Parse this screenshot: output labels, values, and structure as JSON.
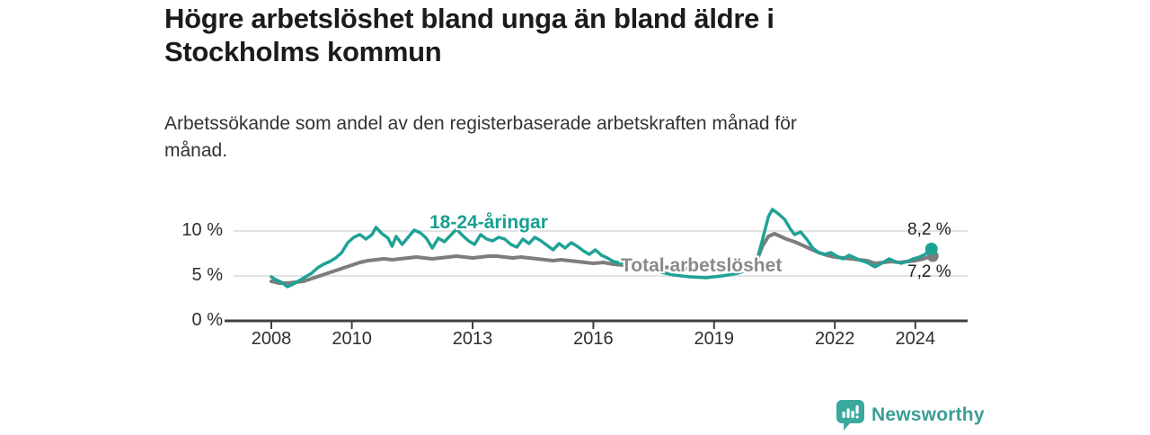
{
  "header": {
    "title_line1": "Högre arbetslöshet bland unga än bland äldre i",
    "title_line2": "Stockholms kommun",
    "subtitle_line1": "Arbetssökande som andel av den registerbaserade arbetskraften månad för",
    "subtitle_line2": "månad."
  },
  "chart_data": {
    "type": "line",
    "title": "Högre arbetslöshet bland unga än bland äldre i Stockholms kommun",
    "subtitle": "Arbetssökande som andel av den registerbaserade arbetskraften månad för månad.",
    "unit": "%",
    "grid": "horizontal-only",
    "legend_position": "inline-labels",
    "x_range": [
      2007.0,
      2025.3
    ],
    "y_range": [
      0,
      13
    ],
    "x_ticks": [
      {
        "value": 2008,
        "label": "2008"
      },
      {
        "value": 2010,
        "label": "2010"
      },
      {
        "value": 2013,
        "label": "2013"
      },
      {
        "value": 2016,
        "label": "2016"
      },
      {
        "value": 2019,
        "label": "2019"
      },
      {
        "value": 2022,
        "label": "2022"
      },
      {
        "value": 2024,
        "label": "2024"
      }
    ],
    "y_ticks": [
      {
        "value": 0,
        "label": "0 %"
      },
      {
        "value": 5,
        "label": "5 %"
      },
      {
        "value": 10,
        "label": "10 %"
      }
    ],
    "series": [
      {
        "name": "Total arbetslöshet",
        "color": "#7d7d7d",
        "end_label": "7,2 %",
        "end_value": 7.2,
        "points": [
          [
            2008.0,
            4.4
          ],
          [
            2008.2,
            4.2
          ],
          [
            2008.4,
            4.2
          ],
          [
            2008.6,
            4.3
          ],
          [
            2008.8,
            4.4
          ],
          [
            2009.0,
            4.7
          ],
          [
            2009.2,
            5.0
          ],
          [
            2009.4,
            5.3
          ],
          [
            2009.6,
            5.6
          ],
          [
            2009.8,
            5.9
          ],
          [
            2010.0,
            6.2
          ],
          [
            2010.2,
            6.5
          ],
          [
            2010.4,
            6.7
          ],
          [
            2010.6,
            6.8
          ],
          [
            2010.8,
            6.9
          ],
          [
            2011.0,
            6.8
          ],
          [
            2011.2,
            6.9
          ],
          [
            2011.4,
            7.0
          ],
          [
            2011.6,
            7.1
          ],
          [
            2011.8,
            7.0
          ],
          [
            2012.0,
            6.9
          ],
          [
            2012.2,
            7.0
          ],
          [
            2012.4,
            7.1
          ],
          [
            2012.6,
            7.2
          ],
          [
            2012.8,
            7.1
          ],
          [
            2013.0,
            7.0
          ],
          [
            2013.2,
            7.1
          ],
          [
            2013.4,
            7.2
          ],
          [
            2013.6,
            7.2
          ],
          [
            2013.8,
            7.1
          ],
          [
            2014.0,
            7.0
          ],
          [
            2014.2,
            7.1
          ],
          [
            2014.4,
            7.0
          ],
          [
            2014.6,
            6.9
          ],
          [
            2014.8,
            6.8
          ],
          [
            2015.0,
            6.7
          ],
          [
            2015.2,
            6.8
          ],
          [
            2015.4,
            6.7
          ],
          [
            2015.6,
            6.6
          ],
          [
            2015.8,
            6.5
          ],
          [
            2016.0,
            6.4
          ],
          [
            2016.25,
            6.5
          ],
          [
            2016.5,
            6.3
          ],
          [
            2016.75,
            6.2
          ],
          [
            2017.0,
            6.3
          ],
          [
            2017.3,
            6.1
          ],
          [
            2017.6,
            6.0
          ],
          [
            2018.0,
            5.9
          ],
          [
            2018.5,
            5.8
          ],
          [
            2019.0,
            5.8
          ],
          [
            2019.5,
            5.9
          ],
          [
            2019.9,
            6.2
          ],
          [
            2020.05,
            6.6
          ],
          [
            2020.2,
            8.3
          ],
          [
            2020.35,
            9.4
          ],
          [
            2020.5,
            9.7
          ],
          [
            2020.65,
            9.4
          ],
          [
            2020.8,
            9.1
          ],
          [
            2021.0,
            8.8
          ],
          [
            2021.2,
            8.4
          ],
          [
            2021.4,
            8.0
          ],
          [
            2021.6,
            7.6
          ],
          [
            2021.8,
            7.3
          ],
          [
            2022.0,
            7.1
          ],
          [
            2022.2,
            7.0
          ],
          [
            2022.4,
            6.9
          ],
          [
            2022.6,
            6.8
          ],
          [
            2022.8,
            6.7
          ],
          [
            2023.0,
            6.4
          ],
          [
            2023.2,
            6.5
          ],
          [
            2023.4,
            6.6
          ],
          [
            2023.6,
            6.5
          ],
          [
            2023.8,
            6.6
          ],
          [
            2024.0,
            6.7
          ],
          [
            2024.2,
            6.9
          ],
          [
            2024.4,
            7.2
          ]
        ]
      },
      {
        "name": "18-24-åringar",
        "color": "#1fa295",
        "end_label": "8,2 %",
        "end_value": 8.2,
        "points": [
          [
            2008.0,
            4.9
          ],
          [
            2008.1,
            4.6
          ],
          [
            2008.25,
            4.3
          ],
          [
            2008.4,
            3.8
          ],
          [
            2008.55,
            4.1
          ],
          [
            2008.7,
            4.5
          ],
          [
            2008.85,
            4.9
          ],
          [
            2009.0,
            5.3
          ],
          [
            2009.15,
            5.9
          ],
          [
            2009.3,
            6.3
          ],
          [
            2009.45,
            6.6
          ],
          [
            2009.6,
            7.0
          ],
          [
            2009.75,
            7.6
          ],
          [
            2009.9,
            8.7
          ],
          [
            2010.05,
            9.3
          ],
          [
            2010.2,
            9.6
          ],
          [
            2010.35,
            9.1
          ],
          [
            2010.5,
            9.6
          ],
          [
            2010.6,
            10.4
          ],
          [
            2010.75,
            9.7
          ],
          [
            2010.9,
            9.2
          ],
          [
            2011.0,
            8.3
          ],
          [
            2011.1,
            9.4
          ],
          [
            2011.25,
            8.5
          ],
          [
            2011.4,
            9.3
          ],
          [
            2011.55,
            10.1
          ],
          [
            2011.7,
            9.8
          ],
          [
            2011.85,
            9.2
          ],
          [
            2012.0,
            8.1
          ],
          [
            2012.15,
            9.2
          ],
          [
            2012.3,
            8.8
          ],
          [
            2012.45,
            9.5
          ],
          [
            2012.6,
            10.2
          ],
          [
            2012.75,
            9.5
          ],
          [
            2012.9,
            8.9
          ],
          [
            2013.05,
            8.5
          ],
          [
            2013.2,
            9.6
          ],
          [
            2013.35,
            9.1
          ],
          [
            2013.5,
            8.9
          ],
          [
            2013.65,
            9.3
          ],
          [
            2013.8,
            9.1
          ],
          [
            2013.95,
            8.5
          ],
          [
            2014.1,
            8.2
          ],
          [
            2014.25,
            9.1
          ],
          [
            2014.4,
            8.6
          ],
          [
            2014.55,
            9.3
          ],
          [
            2014.7,
            8.9
          ],
          [
            2014.85,
            8.4
          ],
          [
            2015.0,
            7.9
          ],
          [
            2015.15,
            8.6
          ],
          [
            2015.3,
            8.1
          ],
          [
            2015.45,
            8.7
          ],
          [
            2015.6,
            8.3
          ],
          [
            2015.75,
            7.8
          ],
          [
            2015.9,
            7.4
          ],
          [
            2016.05,
            7.9
          ],
          [
            2016.2,
            7.3
          ],
          [
            2016.35,
            7.0
          ],
          [
            2016.5,
            6.6
          ],
          [
            2016.7,
            6.4
          ],
          [
            2016.9,
            6.9
          ],
          [
            2017.1,
            6.3
          ],
          [
            2017.4,
            5.8
          ],
          [
            2017.7,
            5.4
          ],
          [
            2018.0,
            5.1
          ],
          [
            2018.4,
            4.9
          ],
          [
            2018.8,
            4.8
          ],
          [
            2019.2,
            5.0
          ],
          [
            2019.6,
            5.3
          ],
          [
            2019.9,
            5.8
          ],
          [
            2020.05,
            6.5
          ],
          [
            2020.2,
            9.0
          ],
          [
            2020.35,
            11.6
          ],
          [
            2020.45,
            12.4
          ],
          [
            2020.6,
            11.9
          ],
          [
            2020.75,
            11.3
          ],
          [
            2020.9,
            10.2
          ],
          [
            2021.0,
            9.6
          ],
          [
            2021.15,
            9.9
          ],
          [
            2021.3,
            9.1
          ],
          [
            2021.45,
            8.1
          ],
          [
            2021.6,
            7.6
          ],
          [
            2021.75,
            7.4
          ],
          [
            2021.9,
            7.6
          ],
          [
            2022.05,
            7.2
          ],
          [
            2022.2,
            6.9
          ],
          [
            2022.35,
            7.3
          ],
          [
            2022.5,
            7.0
          ],
          [
            2022.65,
            6.7
          ],
          [
            2022.8,
            6.5
          ],
          [
            2023.0,
            6.0
          ],
          [
            2023.2,
            6.5
          ],
          [
            2023.35,
            6.9
          ],
          [
            2023.5,
            6.6
          ],
          [
            2023.65,
            6.4
          ],
          [
            2023.8,
            6.6
          ],
          [
            2023.95,
            6.9
          ],
          [
            2024.1,
            7.1
          ],
          [
            2024.25,
            7.4
          ],
          [
            2024.4,
            8.2
          ]
        ]
      }
    ]
  },
  "colors": {
    "young_line": "#1fa295",
    "total_line": "#7d7d7d",
    "gridline": "#d9d9d9",
    "axis": "#404040",
    "brand_teal": "#3b9e95"
  },
  "footer": {
    "brand": "Newsworthy"
  }
}
